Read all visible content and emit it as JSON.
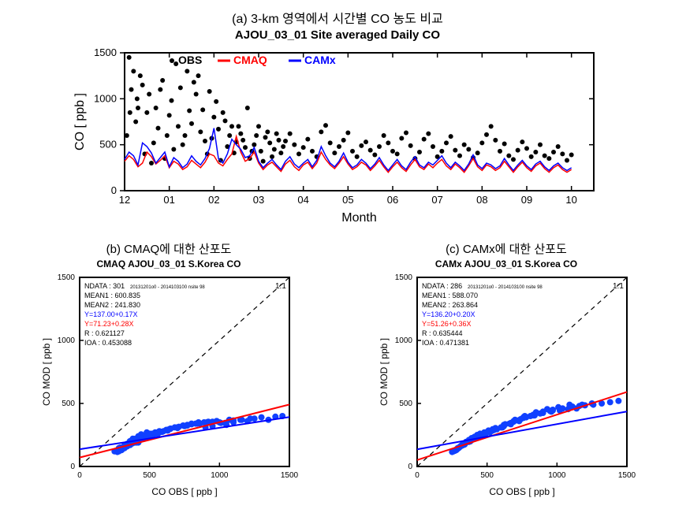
{
  "panel_a": {
    "label": "(a) 3-km 영역에서 시간별 CO 농도 비교",
    "title": "AJOU_03_01 Site averaged Daily CO",
    "type": "timeseries-scatter-line",
    "xlabel": "Month",
    "ylabel": "CO [ ppb ]",
    "xlim": [
      0,
      10.5
    ],
    "ylim": [
      0,
      1500
    ],
    "ytick_step": 500,
    "xticklabels": [
      "12",
      "01",
      "02",
      "03",
      "04",
      "05",
      "06",
      "07",
      "08",
      "09",
      "10"
    ],
    "background_color": "#ffffff",
    "axis_color": "#000000",
    "axis_line_width": 2,
    "label_fontsize": 16,
    "tick_fontsize": 13,
    "legend": [
      {
        "label": "OBS",
        "marker": "dot",
        "color": "#000000"
      },
      {
        "label": "CMAQ",
        "marker": "line",
        "color": "#ff0000"
      },
      {
        "label": "CAMx",
        "marker": "line",
        "color": "#0000ff"
      }
    ],
    "obs": {
      "color": "#000000",
      "marker_size": 3,
      "x": [
        0.05,
        0.1,
        0.12,
        0.15,
        0.2,
        0.25,
        0.28,
        0.3,
        0.35,
        0.4,
        0.45,
        0.5,
        0.55,
        0.6,
        0.65,
        0.7,
        0.75,
        0.8,
        0.85,
        0.9,
        0.95,
        1.0,
        1.05,
        1.1,
        1.15,
        1.2,
        1.25,
        1.3,
        1.35,
        1.4,
        1.45,
        1.5,
        1.55,
        1.6,
        1.65,
        1.7,
        1.75,
        1.8,
        1.85,
        1.9,
        1.95,
        2.0,
        2.05,
        2.1,
        2.15,
        2.2,
        2.25,
        2.3,
        2.35,
        2.4,
        2.45,
        2.5,
        2.55,
        2.6,
        2.65,
        2.7,
        2.75,
        2.8,
        2.85,
        2.9,
        2.95,
        3.0,
        3.05,
        3.1,
        3.15,
        3.2,
        3.25,
        3.3,
        3.35,
        3.4,
        3.45,
        3.5,
        3.55,
        3.6,
        3.7,
        3.8,
        3.9,
        4.0,
        4.1,
        4.2,
        4.3,
        4.4,
        4.5,
        4.6,
        4.7,
        4.8,
        4.9,
        5.0,
        5.1,
        5.2,
        5.3,
        5.4,
        5.5,
        5.6,
        5.7,
        5.8,
        5.9,
        6.0,
        6.1,
        6.2,
        6.3,
        6.4,
        6.5,
        6.6,
        6.7,
        6.8,
        6.9,
        7.0,
        7.1,
        7.2,
        7.3,
        7.4,
        7.5,
        7.6,
        7.7,
        7.8,
        7.9,
        8.0,
        8.1,
        8.2,
        8.3,
        8.4,
        8.5,
        8.6,
        8.7,
        8.8,
        8.9,
        9.0,
        9.1,
        9.2,
        9.3,
        9.4,
        9.5,
        9.6,
        9.7,
        9.8,
        9.9,
        10.0
      ],
      "y": [
        600,
        1450,
        850,
        1100,
        1300,
        750,
        1000,
        900,
        1250,
        1150,
        400,
        850,
        1050,
        300,
        520,
        900,
        680,
        1100,
        1200,
        350,
        600,
        820,
        980,
        450,
        1380,
        700,
        1120,
        500,
        600,
        1300,
        870,
        730,
        1180,
        1050,
        1250,
        640,
        880,
        540,
        400,
        1080,
        570,
        800,
        970,
        670,
        330,
        850,
        760,
        480,
        600,
        700,
        410,
        530,
        700,
        620,
        550,
        470,
        900,
        350,
        430,
        500,
        600,
        700,
        430,
        320,
        580,
        640,
        520,
        370,
        450,
        620,
        550,
        410,
        480,
        540,
        620,
        500,
        400,
        470,
        560,
        430,
        370,
        640,
        710,
        520,
        410,
        480,
        550,
        630,
        430,
        370,
        490,
        530,
        440,
        390,
        480,
        600,
        520,
        430,
        400,
        570,
        630,
        490,
        350,
        420,
        560,
        620,
        480,
        370,
        430,
        520,
        590,
        440,
        380,
        500,
        450,
        360,
        410,
        520,
        610,
        700,
        550,
        430,
        510,
        380,
        340,
        440,
        530,
        460,
        370,
        420,
        500,
        380,
        350,
        420,
        480,
        400,
        330,
        390
      ]
    },
    "cmaq": {
      "color": "#ff0000",
      "line_width": 1.5,
      "x": [
        0,
        0.1,
        0.2,
        0.3,
        0.4,
        0.5,
        0.6,
        0.7,
        0.8,
        0.9,
        1.0,
        1.1,
        1.2,
        1.3,
        1.4,
        1.5,
        1.6,
        1.7,
        1.8,
        1.9,
        2.0,
        2.1,
        2.2,
        2.3,
        2.4,
        2.5,
        2.6,
        2.7,
        2.8,
        2.9,
        3.0,
        3.1,
        3.2,
        3.3,
        3.4,
        3.5,
        3.6,
        3.7,
        3.8,
        3.9,
        4.0,
        4.1,
        4.2,
        4.3,
        4.4,
        4.5,
        4.6,
        4.7,
        4.8,
        4.9,
        5.0,
        5.1,
        5.2,
        5.3,
        5.4,
        5.5,
        5.6,
        5.7,
        5.8,
        5.9,
        6.0,
        6.1,
        6.2,
        6.3,
        6.4,
        6.5,
        6.6,
        6.7,
        6.8,
        6.9,
        7.0,
        7.1,
        7.2,
        7.3,
        7.4,
        7.5,
        7.6,
        7.7,
        7.8,
        7.9,
        8.0,
        8.1,
        8.2,
        8.3,
        8.4,
        8.5,
        8.6,
        8.7,
        8.8,
        8.9,
        9.0,
        9.1,
        9.2,
        9.3,
        9.4,
        9.5,
        9.6,
        9.7,
        9.8,
        9.9,
        10.0
      ],
      "y": [
        320,
        380,
        340,
        260,
        300,
        420,
        370,
        290,
        330,
        380,
        250,
        320,
        290,
        230,
        260,
        330,
        290,
        250,
        310,
        400,
        380,
        300,
        270,
        340,
        400,
        590,
        420,
        320,
        350,
        420,
        300,
        230,
        280,
        310,
        260,
        210,
        290,
        330,
        260,
        220,
        280,
        310,
        240,
        300,
        420,
        340,
        280,
        240,
        300,
        370,
        290,
        230,
        260,
        310,
        280,
        220,
        270,
        330,
        260,
        200,
        260,
        310,
        250,
        210,
        280,
        340,
        260,
        230,
        290,
        250,
        300,
        340,
        270,
        230,
        290,
        250,
        200,
        270,
        350,
        260,
        220,
        280,
        260,
        220,
        250,
        320,
        260,
        200,
        260,
        310,
        250,
        210,
        270,
        300,
        240,
        200,
        250,
        280,
        230,
        200,
        230
      ]
    },
    "camx": {
      "color": "#0000ff",
      "line_width": 1.5,
      "x": [
        0,
        0.1,
        0.2,
        0.3,
        0.4,
        0.5,
        0.6,
        0.7,
        0.8,
        0.9,
        1.0,
        1.1,
        1.2,
        1.3,
        1.4,
        1.5,
        1.6,
        1.7,
        1.8,
        1.9,
        2.0,
        2.1,
        2.2,
        2.3,
        2.4,
        2.5,
        2.6,
        2.7,
        2.8,
        2.9,
        3.0,
        3.1,
        3.2,
        3.3,
        3.4,
        3.5,
        3.6,
        3.7,
        3.8,
        3.9,
        4.0,
        4.1,
        4.2,
        4.3,
        4.4,
        4.5,
        4.6,
        4.7,
        4.8,
        4.9,
        5.0,
        5.1,
        5.2,
        5.3,
        5.4,
        5.5,
        5.6,
        5.7,
        5.8,
        5.9,
        6.0,
        6.1,
        6.2,
        6.3,
        6.4,
        6.5,
        6.6,
        6.7,
        6.8,
        6.9,
        7.0,
        7.1,
        7.2,
        7.3,
        7.4,
        7.5,
        7.6,
        7.7,
        7.8,
        7.9,
        8.0,
        8.1,
        8.2,
        8.3,
        8.4,
        8.5,
        8.6,
        8.7,
        8.8,
        8.9,
        9.0,
        9.1,
        9.2,
        9.3,
        9.4,
        9.5,
        9.6,
        9.7,
        9.8,
        9.9,
        10.0
      ],
      "y": [
        340,
        420,
        380,
        280,
        520,
        480,
        410,
        300,
        360,
        420,
        260,
        360,
        320,
        250,
        290,
        380,
        320,
        280,
        350,
        460,
        680,
        350,
        300,
        400,
        560,
        500,
        450,
        360,
        380,
        470,
        320,
        250,
        300,
        340,
        280,
        230,
        320,
        370,
        290,
        250,
        300,
        340,
        260,
        330,
        480,
        380,
        300,
        260,
        320,
        410,
        310,
        250,
        280,
        340,
        300,
        240,
        290,
        360,
        280,
        220,
        280,
        340,
        270,
        230,
        310,
        370,
        280,
        250,
        310,
        280,
        330,
        380,
        300,
        250,
        310,
        270,
        220,
        290,
        390,
        280,
        240,
        300,
        280,
        240,
        270,
        350,
        280,
        220,
        280,
        330,
        270,
        230,
        290,
        320,
        260,
        220,
        270,
        300,
        250,
        220,
        250
      ]
    }
  },
  "panel_b": {
    "label": "(b) CMAQ에 대한 산포도",
    "title": "CMAQ AJOU_03_01 S.Korea CO",
    "type": "scatter",
    "xlabel": "CO OBS [ ppb ]",
    "ylabel": "CO MOD [ ppb ]",
    "xlim": [
      0,
      1500
    ],
    "ylim": [
      0,
      1500
    ],
    "tick_step": 500,
    "background_color": "#ffffff",
    "axis_color": "#000000",
    "axis_line_width": 2,
    "label_fontsize": 12,
    "tick_fontsize": 10,
    "stats": {
      "NDATA": "NDATA : 301",
      "inline_small": "20131201o0 - 2014103100 nsite 98",
      "MEAN1": "MEAN1 : 600.835",
      "MEAN2": "MEAN2 : 241.830",
      "fit_blue": "Y=137.00+0.17X",
      "fit_red": "Y=71.23+0.28X",
      "R": "R : 0.621127",
      "IOA": "IOA : 0.453088"
    },
    "stats_colors": {
      "fit_blue": "#0000ff",
      "fit_red": "#ff0000",
      "default": "#000000"
    },
    "one_one_label": "1:1",
    "one_one_color": "#000000",
    "fit_blue_line": {
      "slope": 0.17,
      "intercept": 137,
      "color": "#0000ff",
      "width": 2
    },
    "fit_red_line": {
      "slope": 0.28,
      "intercept": 71.23,
      "color": "#ff0000",
      "width": 2
    },
    "points": {
      "color": "#1040ff",
      "size": 4,
      "x": [
        280,
        300,
        310,
        330,
        340,
        350,
        360,
        370,
        380,
        390,
        400,
        410,
        420,
        430,
        440,
        450,
        320,
        340,
        360,
        380,
        400,
        420,
        440,
        460,
        480,
        500,
        300,
        330,
        360,
        390,
        420,
        450,
        480,
        510,
        540,
        570,
        270,
        300,
        370,
        410,
        450,
        500,
        550,
        600,
        650,
        700,
        260,
        290,
        330,
        370,
        420,
        470,
        520,
        570,
        620,
        250,
        280,
        320,
        360,
        400,
        460,
        520,
        580,
        640,
        700,
        750,
        800,
        850,
        900,
        950,
        1000,
        1050,
        1100,
        1150,
        1200,
        1250,
        1300,
        1350,
        1400,
        1450,
        360,
        400,
        440,
        500,
        560,
        620,
        680,
        740,
        800,
        860,
        920,
        980,
        1040,
        1100,
        1160,
        1220,
        340,
        380,
        430,
        480,
        530,
        590,
        650,
        710,
        770,
        830,
        890,
        950,
        1010,
        1070,
        310,
        350,
        390,
        440,
        500,
        560,
        630,
        700,
        770,
        840,
        910,
        980
      ],
      "y": [
        120,
        135,
        150,
        170,
        160,
        180,
        200,
        180,
        210,
        200,
        220,
        190,
        230,
        210,
        240,
        225,
        145,
        180,
        200,
        220,
        210,
        240,
        255,
        240,
        270,
        260,
        130,
        155,
        170,
        200,
        190,
        230,
        250,
        245,
        270,
        280,
        115,
        140,
        180,
        200,
        225,
        240,
        260,
        280,
        300,
        310,
        125,
        150,
        170,
        195,
        210,
        240,
        260,
        275,
        290,
        120,
        145,
        165,
        185,
        205,
        230,
        250,
        275,
        295,
        310,
        320,
        335,
        350,
        310,
        320,
        350,
        330,
        350,
        370,
        360,
        380,
        390,
        370,
        395,
        400,
        175,
        190,
        220,
        245,
        270,
        290,
        310,
        325,
        340,
        340,
        355,
        360,
        345,
        365,
        370,
        380,
        165,
        185,
        210,
        235,
        255,
        275,
        300,
        315,
        330,
        340,
        350,
        355,
        345,
        370,
        155,
        175,
        195,
        215,
        240,
        260,
        285,
        305,
        325,
        340,
        350,
        360
      ]
    }
  },
  "panel_c": {
    "label": "(c) CAMx에 대한 산포도",
    "title": "CAMx AJOU_03_01 S.Korea CO",
    "type": "scatter",
    "xlabel": "CO OBS [ ppb ]",
    "ylabel": "CO MOD [ ppb ]",
    "xlim": [
      0,
      1500
    ],
    "ylim": [
      0,
      1500
    ],
    "tick_step": 500,
    "background_color": "#ffffff",
    "axis_color": "#000000",
    "axis_line_width": 2,
    "label_fontsize": 12,
    "tick_fontsize": 10,
    "stats": {
      "NDATA": "NDATA : 286",
      "inline_small": "20131201o0 - 2014103100 nsite 98",
      "MEAN1": "MEAN1 : 588.070",
      "MEAN2": "MEAN2 : 263.864",
      "fit_blue": "Y=136.20+0.20X",
      "fit_red": "Y=51.26+0.36X",
      "R": "R : 0.635444",
      "IOA": "IOA : 0.471381"
    },
    "stats_colors": {
      "fit_blue": "#0000ff",
      "fit_red": "#ff0000",
      "default": "#000000"
    },
    "one_one_label": "1:1",
    "one_one_color": "#000000",
    "fit_blue_line": {
      "slope": 0.2,
      "intercept": 136.2,
      "color": "#0000ff",
      "width": 2
    },
    "fit_red_line": {
      "slope": 0.36,
      "intercept": 51.26,
      "color": "#ff0000",
      "width": 2
    },
    "points": {
      "color": "#1040ff",
      "size": 4,
      "x": [
        270,
        290,
        310,
        330,
        350,
        370,
        390,
        410,
        430,
        450,
        280,
        300,
        330,
        360,
        390,
        420,
        450,
        480,
        510,
        540,
        260,
        300,
        340,
        380,
        420,
        470,
        520,
        570,
        620,
        670,
        250,
        290,
        330,
        380,
        430,
        490,
        550,
        610,
        670,
        730,
        280,
        320,
        370,
        420,
        480,
        540,
        600,
        660,
        720,
        780,
        840,
        900,
        960,
        1020,
        1080,
        1140,
        1200,
        1260,
        1320,
        1380,
        1440,
        300,
        340,
        390,
        440,
        500,
        560,
        620,
        690,
        760,
        830,
        900,
        970,
        1040,
        1110,
        1180,
        1250,
        310,
        360,
        410,
        470,
        530,
        600,
        670,
        740,
        810,
        880,
        950,
        1020,
        1090,
        1160,
        290,
        330,
        380,
        430,
        490,
        550,
        620,
        690,
        760,
        830,
        900,
        970,
        1040,
        1110,
        320,
        370,
        430,
        490,
        560,
        630,
        700,
        770,
        850,
        930,
        1010,
        1090
      ],
      "y": [
        125,
        140,
        160,
        180,
        195,
        210,
        225,
        235,
        250,
        260,
        130,
        150,
        170,
        195,
        215,
        235,
        255,
        270,
        285,
        295,
        120,
        150,
        175,
        200,
        225,
        250,
        270,
        295,
        320,
        340,
        115,
        145,
        175,
        205,
        230,
        260,
        290,
        310,
        335,
        360,
        135,
        165,
        195,
        225,
        255,
        285,
        310,
        340,
        365,
        390,
        405,
        425,
        435,
        445,
        455,
        460,
        485,
        490,
        500,
        510,
        520,
        150,
        180,
        210,
        240,
        270,
        300,
        330,
        360,
        390,
        410,
        435,
        450,
        460,
        470,
        490,
        500,
        160,
        195,
        225,
        250,
        280,
        310,
        345,
        375,
        400,
        420,
        440,
        455,
        470,
        480,
        145,
        175,
        200,
        230,
        260,
        290,
        325,
        355,
        385,
        405,
        430,
        445,
        460,
        475,
        170,
        205,
        235,
        270,
        305,
        335,
        370,
        400,
        430,
        455,
        470,
        490
      ]
    }
  }
}
